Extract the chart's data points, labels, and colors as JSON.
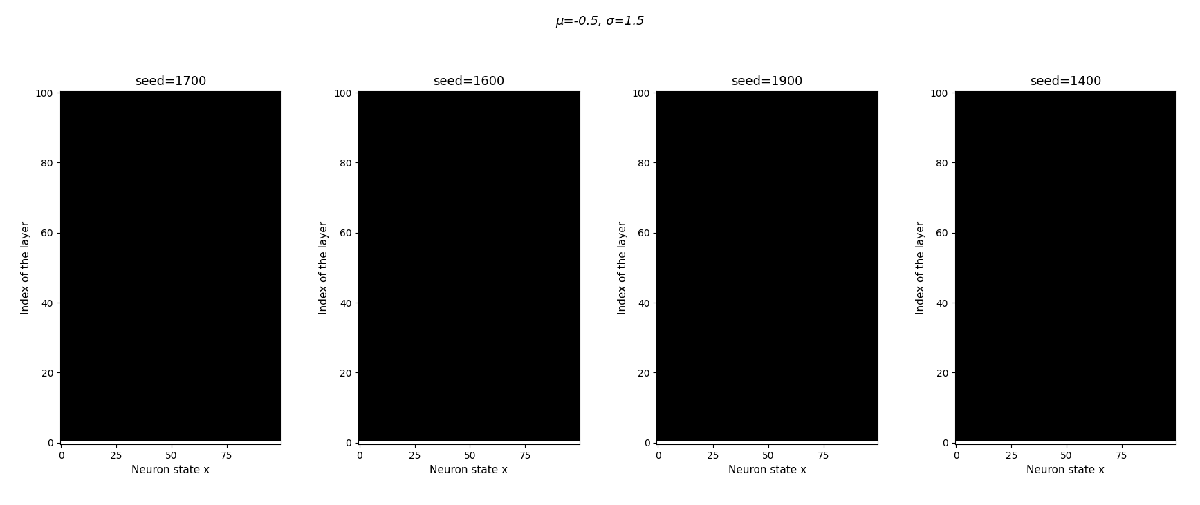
{
  "mu": -0.5,
  "sigma": 1.5,
  "seeds": [
    1700,
    1600,
    1900,
    1400
  ],
  "n_neurons": 100,
  "n_layers": 101,
  "threshold": 0.0,
  "suptitle": "μ=-0.5, σ=1.5",
  "xlabel": "Neuron state x",
  "ylabel": "Index of the layer",
  "xticks": [
    0,
    25,
    50,
    75
  ],
  "yticks": [
    0,
    20,
    40,
    60,
    80,
    100
  ],
  "figsize": [
    17.35,
    7.31
  ],
  "dpi": 100,
  "background_color": "#ffffff",
  "title_fontsize": 13,
  "label_fontsize": 11,
  "tick_fontsize": 10,
  "suptitle_fontsize": 13
}
